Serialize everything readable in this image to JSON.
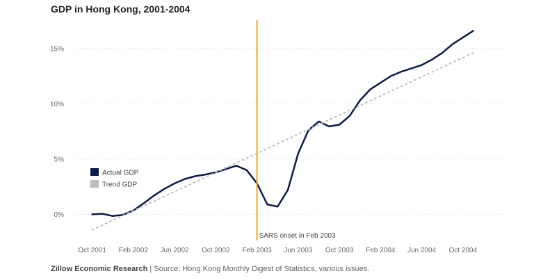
{
  "chart_data": {
    "type": "line",
    "title": "GDP in Hong Kong, 2001-2004",
    "xlabel": "",
    "ylabel": "",
    "x_ticks": [
      "Oct 2001",
      "Feb 2002",
      "Jun 2002",
      "Oct 2002",
      "Feb 2003",
      "Jun 2003",
      "Oct 2003",
      "Feb 2004",
      "Jun 2004",
      "Oct 2004"
    ],
    "y_ticks": [
      "0%",
      "5%",
      "10%",
      "15%"
    ],
    "ylim": [
      -2.3,
      17.5
    ],
    "xlim": [
      "Aug 2001",
      "Feb 2005"
    ],
    "grid": "horizontal dotted",
    "legend_position": "left-middle",
    "series": [
      {
        "name": "Actual GDP",
        "color": "#0d1b4c",
        "style": "solid",
        "points": [
          [
            "Oct 2001",
            0.0
          ],
          [
            "Nov 2001",
            0.05
          ],
          [
            "Dec 2001",
            -0.15
          ],
          [
            "Jan 2002",
            -0.05
          ],
          [
            "Feb 2002",
            0.35
          ],
          [
            "Mar 2002",
            1.0
          ],
          [
            "Apr 2002",
            1.7
          ],
          [
            "May 2002",
            2.3
          ],
          [
            "Jun 2002",
            2.8
          ],
          [
            "Jul 2002",
            3.2
          ],
          [
            "Aug 2002",
            3.45
          ],
          [
            "Sep 2002",
            3.6
          ],
          [
            "Oct 2002",
            3.8
          ],
          [
            "Nov 2002",
            4.1
          ],
          [
            "Dec 2002",
            4.4
          ],
          [
            "Jan 2003",
            4.0
          ],
          [
            "Feb 2003",
            2.8
          ],
          [
            "Mar 2003",
            0.9
          ],
          [
            "Apr 2003",
            0.7
          ],
          [
            "May 2003",
            2.2
          ],
          [
            "Jun 2003",
            5.5
          ],
          [
            "Jul 2003",
            7.6
          ],
          [
            "Aug 2003",
            8.4
          ],
          [
            "Sep 2003",
            7.95
          ],
          [
            "Oct 2003",
            8.1
          ],
          [
            "Nov 2003",
            8.9
          ],
          [
            "Dec 2003",
            10.3
          ],
          [
            "Jan 2004",
            11.3
          ],
          [
            "Feb 2004",
            11.9
          ],
          [
            "Mar 2004",
            12.5
          ],
          [
            "Apr 2004",
            12.9
          ],
          [
            "May 2004",
            13.2
          ],
          [
            "Jun 2004",
            13.5
          ],
          [
            "Jul 2004",
            14.0
          ],
          [
            "Aug 2004",
            14.6
          ],
          [
            "Sep 2004",
            15.4
          ],
          [
            "Oct 2004",
            16.0
          ],
          [
            "Nov 2004",
            16.6
          ]
        ]
      },
      {
        "name": "Trend GDP",
        "color": "#bdbdbd",
        "style": "dotted",
        "points": [
          [
            "Oct 2001",
            -1.4
          ],
          [
            "Nov 2004",
            14.6
          ]
        ]
      }
    ],
    "annotations": [
      {
        "label": "SARS onset in Feb 2003",
        "x": "Feb 2003",
        "type": "vertical-line",
        "color": "#f5a623"
      }
    ]
  },
  "footer": {
    "org": "Zillow Economic Research",
    "separator": " | ",
    "source": "Source: Hong Kong Monthly Digest of Statistics, various issues."
  }
}
